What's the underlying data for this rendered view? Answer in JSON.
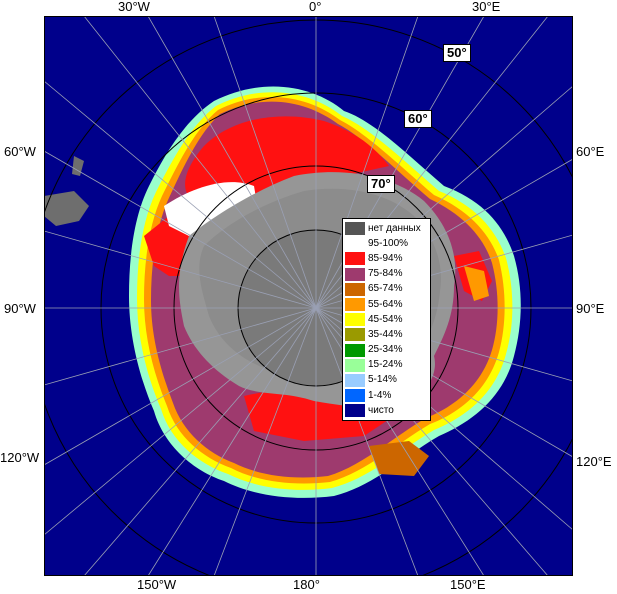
{
  "colors": {
    "ocean": "#00008b",
    "land": "#6e6e6e",
    "ice_shelf": "#969696",
    "graticule": "#9aa0b4",
    "graticule_lat": "#000000",
    "c95": "#ffffff",
    "c85": "#ff1111",
    "c75": "#9e3a6e",
    "c65": "#cc6600",
    "c55": "#ff9900",
    "c45": "#ffff00",
    "c35": "#9a9a00",
    "c25": "#009900",
    "c15": "#99ff99",
    "c5": "#99ccff",
    "c1": "#0066ff"
  },
  "labels": {
    "top_30w": "30°W",
    "top_0": "0°",
    "top_30e": "30°E",
    "left_60w": "60°W",
    "left_90w": "90°W",
    "left_120w": "120°W",
    "right_60e": "60°E",
    "right_90e": "90°E",
    "right_120e": "120°E",
    "bottom_150w": "150°W",
    "bottom_180": "180°",
    "bottom_150e": "150°E",
    "lat_50": "50°",
    "lat_60": "60°",
    "lat_70": "70°"
  },
  "legend": {
    "items": [
      {
        "label": "нет данных",
        "color": "#555555"
      },
      {
        "label": "95-100%",
        "color": "#ffffff"
      },
      {
        "label": "85-94%",
        "color": "#ff1111"
      },
      {
        "label": "75-84%",
        "color": "#9e3a6e"
      },
      {
        "label": "65-74%",
        "color": "#cc6600"
      },
      {
        "label": "55-64%",
        "color": "#ff9900"
      },
      {
        "label": "45-54%",
        "color": "#ffff00"
      },
      {
        "label": "35-44%",
        "color": "#9a9a00"
      },
      {
        "label": "25-34%",
        "color": "#009900"
      },
      {
        "label": "15-24%",
        "color": "#99ff99"
      },
      {
        "label": "5-14%",
        "color": "#99ccff"
      },
      {
        "label": "1-4%",
        "color": "#0066ff"
      },
      {
        "label": "чисто",
        "color": "#00008b"
      }
    ]
  }
}
